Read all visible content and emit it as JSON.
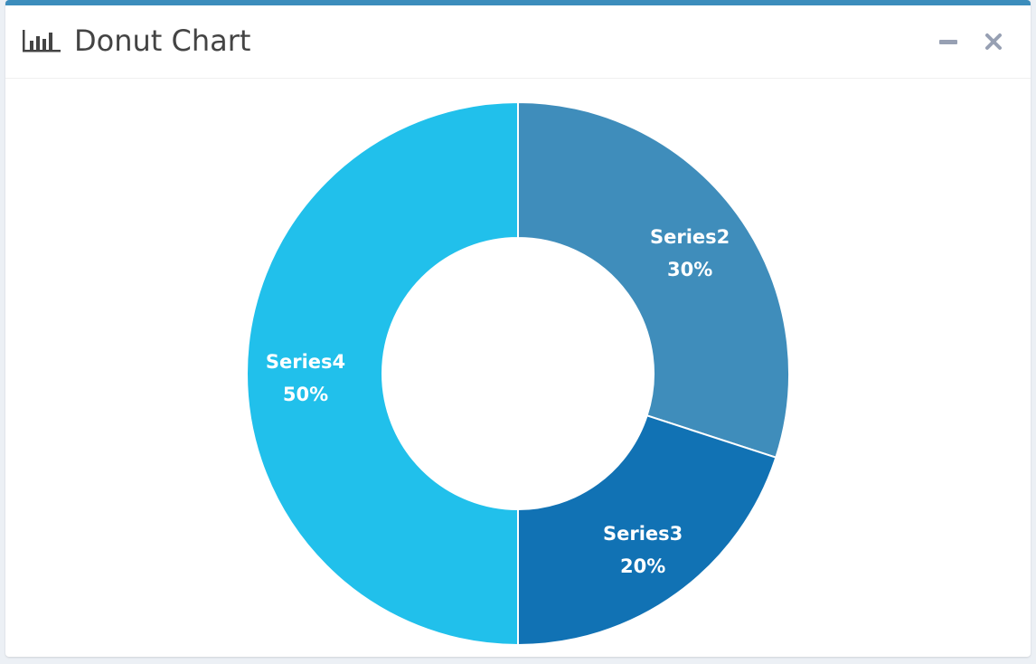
{
  "box": {
    "title": "Donut Chart",
    "title_icon": "bar-chart-icon",
    "tools": {
      "collapse_icon": "minus-icon",
      "remove_icon": "close-icon"
    },
    "accent_color": "#3c8dbc"
  },
  "chart_data": {
    "type": "pie",
    "hole": true,
    "title": "Donut Chart",
    "slices": [
      {
        "label": "Series2",
        "value": 30,
        "pct_label": "30%",
        "color": "#3f8dbb"
      },
      {
        "label": "Series3",
        "value": 20,
        "pct_label": "20%",
        "color": "#1172b4"
      },
      {
        "label": "Series4",
        "value": 50,
        "pct_label": "50%",
        "color": "#21c0eb"
      }
    ],
    "start": "top",
    "direction": "clockwise"
  }
}
